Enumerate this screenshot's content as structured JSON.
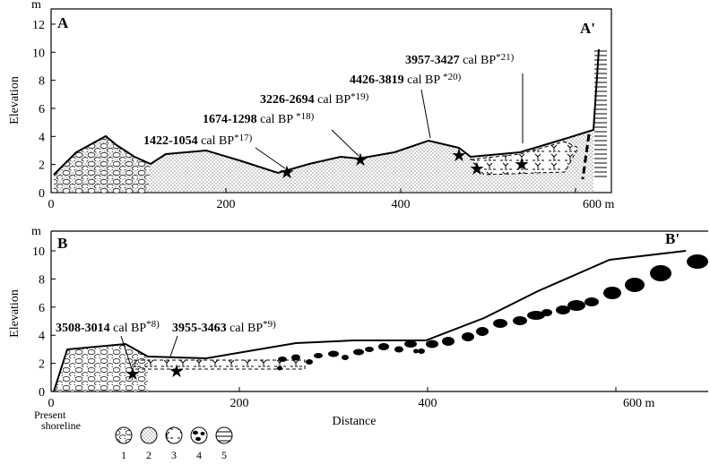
{
  "panels": [
    {
      "label": "A",
      "end_label": "A'",
      "y_unit": "m",
      "y_title": "Elevation",
      "yticks": [
        0,
        2,
        4,
        6,
        8,
        10,
        12
      ],
      "xticks": [
        0,
        200,
        400,
        {
          "value": 600,
          "label": "600 m"
        }
      ],
      "dates": [
        {
          "range": "1422-1054",
          "unit": "cal BP",
          "ref": "*17)"
        },
        {
          "range": "1674-1298",
          "unit": "cal BP",
          "ref": "*18)"
        },
        {
          "range": "3226-2694",
          "unit": "cal BP",
          "ref": "*19)"
        },
        {
          "range": "4426-3819",
          "unit": "cal BP",
          "ref": "*20)"
        },
        {
          "range": "3957-3427",
          "unit": "cal BP",
          "ref": "*21)"
        }
      ]
    },
    {
      "label": "B",
      "end_label": "B'",
      "y_unit": "m",
      "y_title": "Elevation",
      "yticks": [
        0,
        2,
        4,
        6,
        8,
        10
      ],
      "xticks": [
        0,
        200,
        400,
        {
          "value": 600,
          "label": "600 m"
        }
      ],
      "x_title": "Distance",
      "origin_note": [
        "Present",
        "shoreline"
      ],
      "dates": [
        {
          "range": "3508-3014",
          "unit": "cal BP",
          "ref": "*8)"
        },
        {
          "range": "3955-3463",
          "unit": "cal BP",
          "ref": "*9)"
        }
      ]
    }
  ],
  "legend": [
    "1",
    "2",
    "3",
    "4",
    "5"
  ]
}
